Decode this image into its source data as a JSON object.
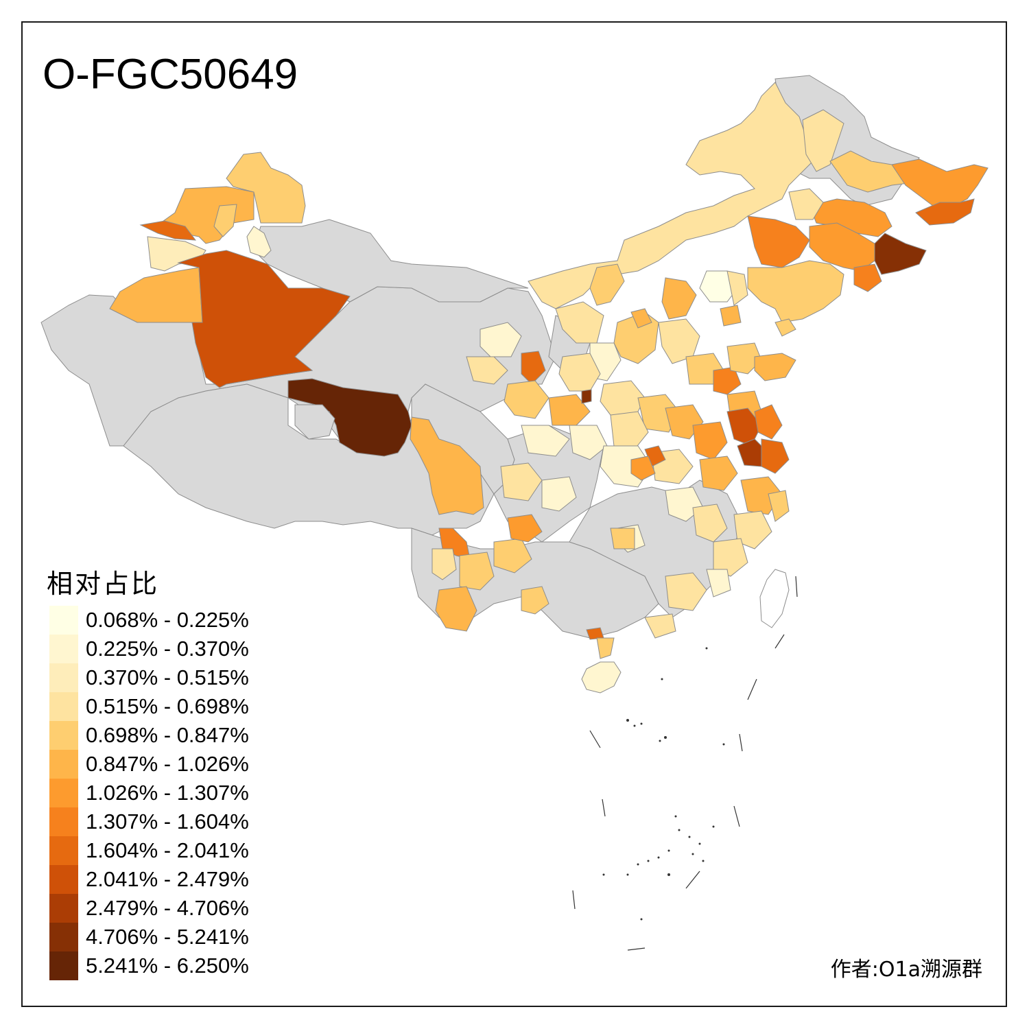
{
  "title": "O-FGC50649",
  "legend": {
    "title": "相对占比",
    "bins": [
      {
        "label": "0.068% - 0.225%",
        "color": "#ffffe5"
      },
      {
        "label": "0.225% - 0.370%",
        "color": "#fff6d0"
      },
      {
        "label": "0.370% - 0.515%",
        "color": "#feedba"
      },
      {
        "label": "0.515% - 0.698%",
        "color": "#fee3a0"
      },
      {
        "label": "0.698% - 0.847%",
        "color": "#fece70"
      },
      {
        "label": "0.847% - 1.026%",
        "color": "#feb54a"
      },
      {
        "label": "1.026% - 1.307%",
        "color": "#fd9b2e"
      },
      {
        "label": "1.307% - 1.604%",
        "color": "#f6811d"
      },
      {
        "label": "1.604% - 2.041%",
        "color": "#e66a10"
      },
      {
        "label": "2.041% - 2.479%",
        "color": "#cf5108"
      },
      {
        "label": "2.479% - 4.706%",
        "color": "#ab3d05"
      },
      {
        "label": "4.706% - 5.241%",
        "color": "#863005"
      },
      {
        "label": "5.241% - 6.250%",
        "color": "#662506"
      }
    ]
  },
  "no_data_color": "#d9d9d9",
  "credit": "作者:O1a溯源群"
}
